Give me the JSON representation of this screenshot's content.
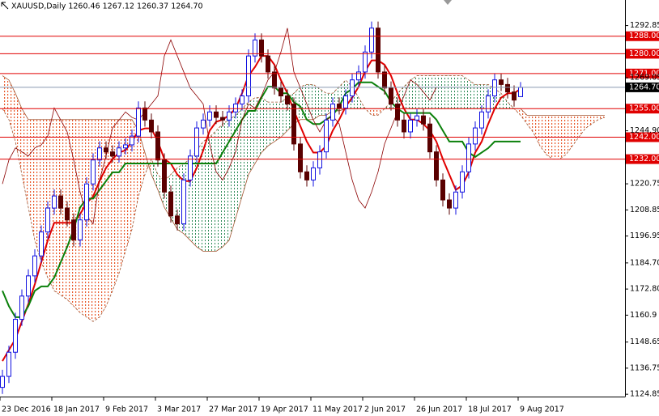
{
  "chart_data": {
    "type": "candlestick",
    "title": "XAUUSD,Daily  1260.46 1267.12 1260.37 1264.70",
    "categories": [
      "23 Dec 2016",
      null,
      null,
      null,
      null,
      null,
      null,
      null,
      "18 Jan 2017",
      null,
      null,
      null,
      null,
      null,
      null,
      null,
      "9 Feb 2017",
      null,
      null,
      null,
      null,
      null,
      null,
      null,
      "3 Mar 2017",
      null,
      null,
      null,
      null,
      null,
      null,
      null,
      "27 Mar 2017",
      null,
      null,
      null,
      null,
      null,
      null,
      null,
      "19 Apr 2017",
      null,
      null,
      null,
      null,
      null,
      null,
      null,
      "11 May 2017",
      null,
      null,
      null,
      null,
      null,
      null,
      null,
      "2 Jun 2017",
      null,
      null,
      null,
      null,
      null,
      null,
      null,
      "26 Jun 2017",
      null,
      null,
      null,
      null,
      null,
      null,
      null,
      "18 Jul 2017",
      null,
      null,
      null,
      null,
      null,
      null,
      null,
      "9 Aug 2017",
      null,
      null,
      null,
      null,
      null,
      null,
      null,
      null,
      null,
      null,
      null,
      null,
      null
    ],
    "candles": {
      "up_color": "#1010e0",
      "down_color": "#5a0000",
      "open": [
        1128.0,
        1133.0,
        1144.0,
        1159.0,
        1169.6,
        1178.8,
        1187.9,
        1198.8,
        1209.7,
        1215.2,
        1209.7,
        1204.3,
        1195.2,
        1204.3,
        1220.7,
        1231.6,
        1237.1,
        1235.3,
        1233.4,
        1237.1,
        1238.5,
        1242.5,
        1255.3,
        1249.8,
        1244.4,
        1231.6,
        1217.0,
        1206.1,
        1202.5,
        1222.5,
        1233.4,
        1246.2,
        1249.8,
        1253.5,
        1251.0,
        1249.8,
        1253.5,
        1257.1,
        1260.8,
        1279.0,
        1286.3,
        1279.0,
        1271.7,
        1264.4,
        1260.8,
        1257.1,
        1238.9,
        1226.2,
        1222.5,
        1228.0,
        1235.3,
        1249.8,
        1257.1,
        1255.3,
        1260.8,
        1268.1,
        1271.7,
        1280.8,
        1291.7,
        1271.7,
        1264.4,
        1257.1,
        1249.8,
        1244.4,
        1249.8,
        1251.7,
        1248.0,
        1235.3,
        1222.5,
        1213.4,
        1209.7,
        1217.0,
        1226.2,
        1238.9,
        1246.2,
        1253.5,
        1260.8,
        1268.1,
        1266.0,
        1262.6,
        1260.46,
        null,
        null,
        null,
        null,
        null,
        null,
        null,
        null,
        null,
        null,
        null,
        null,
        null
      ],
      "high": [
        1136.0,
        1147.0,
        1162.0,
        1172.6,
        1181.8,
        1190.9,
        1201.8,
        1212.7,
        1218.2,
        1218.2,
        1212.7,
        1207.3,
        1207.3,
        1223.7,
        1234.6,
        1240.1,
        1240.1,
        1238.3,
        1240.1,
        1241.5,
        1245.5,
        1258.3,
        1258.3,
        1252.8,
        1247.4,
        1234.6,
        1220.0,
        1209.1,
        1225.5,
        1236.4,
        1249.2,
        1252.8,
        1256.5,
        1256.5,
        1254.0,
        1256.5,
        1260.1,
        1263.8,
        1282.0,
        1289.3,
        1289.3,
        1282.0,
        1274.7,
        1267.4,
        1263.8,
        1260.1,
        1241.9,
        1229.2,
        1231.0,
        1238.3,
        1252.8,
        1260.1,
        1260.1,
        1263.8,
        1271.1,
        1274.7,
        1283.8,
        1294.7,
        1294.7,
        1274.7,
        1267.4,
        1260.1,
        1252.8,
        1252.8,
        1254.7,
        1254.7,
        1251.0,
        1238.3,
        1225.5,
        1216.4,
        1220.0,
        1229.2,
        1241.9,
        1249.2,
        1256.5,
        1263.8,
        1271.1,
        1271.1,
        1269.0,
        1265.6,
        1267.12,
        null,
        null,
        null,
        null,
        null,
        null,
        null,
        null,
        null,
        null,
        null,
        null,
        null
      ],
      "low": [
        1125.0,
        1130.0,
        1141.0,
        1156.0,
        1166.6,
        1175.8,
        1184.9,
        1195.8,
        1206.7,
        1206.7,
        1201.3,
        1192.2,
        1192.2,
        1201.3,
        1217.7,
        1228.6,
        1232.3,
        1230.4,
        1230.4,
        1234.1,
        1235.5,
        1239.5,
        1246.8,
        1241.4,
        1228.6,
        1214.0,
        1203.1,
        1199.5,
        1199.5,
        1219.5,
        1230.4,
        1243.2,
        1246.8,
        1248.0,
        1246.8,
        1246.8,
        1250.5,
        1254.1,
        1257.8,
        1276.0,
        1276.0,
        1268.7,
        1261.4,
        1257.8,
        1254.1,
        1235.9,
        1223.2,
        1219.5,
        1219.5,
        1225.0,
        1232.3,
        1246.8,
        1252.3,
        1252.3,
        1257.8,
        1265.1,
        1268.7,
        1277.8,
        1268.7,
        1261.4,
        1254.1,
        1246.8,
        1241.4,
        1241.4,
        1246.8,
        1245.0,
        1232.3,
        1219.5,
        1210.4,
        1206.7,
        1206.7,
        1214.0,
        1223.2,
        1235.9,
        1243.2,
        1250.5,
        1257.8,
        1263.0,
        1259.6,
        1255.9,
        1260.37,
        null,
        null,
        null,
        null,
        null,
        null,
        null,
        null,
        null,
        null,
        null,
        null,
        null
      ],
      "close": [
        1133.0,
        1144.0,
        1159.0,
        1169.6,
        1178.8,
        1187.9,
        1198.8,
        1209.7,
        1215.2,
        1209.7,
        1204.3,
        1195.2,
        1204.3,
        1220.7,
        1231.6,
        1237.1,
        1235.3,
        1233.4,
        1237.1,
        1238.5,
        1242.5,
        1255.3,
        1249.8,
        1244.4,
        1231.6,
        1217.0,
        1206.1,
        1202.5,
        1222.5,
        1233.4,
        1246.2,
        1249.8,
        1253.5,
        1251.0,
        1249.8,
        1253.5,
        1257.1,
        1260.8,
        1279.0,
        1286.3,
        1279.0,
        1271.7,
        1264.4,
        1260.8,
        1257.1,
        1238.9,
        1226.2,
        1222.5,
        1228.0,
        1235.3,
        1249.8,
        1257.1,
        1255.3,
        1260.8,
        1268.1,
        1271.7,
        1280.8,
        1291.7,
        1271.7,
        1264.4,
        1257.1,
        1249.8,
        1244.4,
        1249.8,
        1251.7,
        1248.0,
        1235.3,
        1222.5,
        1213.4,
        1209.7,
        1217.0,
        1226.2,
        1238.9,
        1246.2,
        1253.5,
        1260.8,
        1268.1,
        1266.0,
        1262.6,
        1258.9,
        1264.7,
        null,
        null,
        null,
        null,
        null,
        null,
        null,
        null,
        null,
        null,
        null,
        null,
        null
      ]
    },
    "cloud": {
      "bull_color": "#2e8b57",
      "bear_color": "#e8582a",
      "edge_color": "#a0522d",
      "span_a": [
        1255,
        1250,
        1240,
        1225,
        1210,
        1195,
        1185,
        1178,
        1172,
        1170,
        1168,
        1165,
        1162,
        1160,
        1158,
        1160,
        1165,
        1172,
        1180,
        1190,
        1200,
        1215,
        1225,
        1232,
        1225,
        1222,
        1225,
        1228,
        1230,
        1232,
        1236,
        1240,
        1242,
        1245,
        1248,
        1250,
        1252,
        1255,
        1258,
        1260,
        1260,
        1258,
        1258,
        1258,
        1260,
        1262,
        1265,
        1266,
        1266,
        1264,
        1262,
        1262,
        1265,
        1268,
        1265,
        1260,
        1255,
        1252,
        1252,
        1255,
        1258,
        1262,
        1265,
        1268,
        1270,
        1270,
        1270,
        1270,
        1270,
        1270,
        1270,
        1270,
        1268,
        1266,
        1266,
        1266,
        1264,
        1262,
        1258,
        1255,
        1252,
        1248,
        1244,
        1238,
        1234,
        1232,
        1232,
        1234,
        1238,
        1242,
        1246,
        1248,
        1250,
        1251
      ],
      "span_b": [
        1270,
        1268,
        1262,
        1255,
        1250,
        1250,
        1250,
        1250,
        1250,
        1250,
        1250,
        1250,
        1250,
        1250,
        1250,
        1250,
        1250,
        1250,
        1250,
        1250,
        1250,
        1245,
        1235,
        1225,
        1218,
        1210,
        1205,
        1200,
        1198,
        1195,
        1192,
        1190,
        1190,
        1190,
        1192,
        1195,
        1205,
        1215,
        1225,
        1230,
        1235,
        1238,
        1240,
        1242,
        1245,
        1248,
        1250,
        1250,
        1250,
        1252,
        1252,
        1254,
        1254,
        1255,
        1255,
        1255,
        1255,
        1255,
        1255,
        1255,
        1255,
        1255,
        1255,
        1255,
        1255,
        1255,
        1255,
        1255,
        1255,
        1255,
        1255,
        1255,
        1255,
        1255,
        1255,
        1255,
        1255,
        1255,
        1255,
        1255,
        1255,
        1252,
        1252,
        1252,
        1252,
        1252,
        1252,
        1252,
        1252,
        1252,
        1252,
        1252,
        1252,
        1252
      ]
    },
    "lines": [
      {
        "color": "#e00000",
        "width": 2,
        "values": [
          1140,
          1145,
          1150,
          1158,
          1166,
          1175,
          1185,
          1195,
          1203,
          1203,
          1203,
          1203,
          1207,
          1212,
          1215,
          1222,
          1228,
          1232,
          1235,
          1236,
          1240,
          1245,
          1246,
          1246,
          1240,
          1232,
          1230,
          1225,
          1222,
          1222,
          1228,
          1236,
          1245,
          1249,
          1250,
          1252,
          1255,
          1262,
          1270,
          1274,
          1279,
          1279,
          1275,
          1268,
          1262,
          1254,
          1247,
          1240,
          1235,
          1235,
          1238,
          1245,
          1250,
          1256,
          1260,
          1265,
          1272,
          1277,
          1277,
          1275,
          1270,
          1262,
          1255,
          1250,
          1250,
          1248,
          1245,
          1240,
          1232,
          1225,
          1218,
          1220,
          1226,
          1235,
          1240,
          1248,
          1255,
          1260,
          1262,
          1262,
          1264,
          null,
          null,
          null,
          null,
          null,
          null,
          null,
          null,
          null,
          null,
          null,
          null,
          null
        ]
      },
      {
        "color": "#0a800a",
        "width": 2,
        "values": [
          1172,
          1165,
          1160,
          1160,
          1165,
          1172,
          1174,
          1174,
          1178,
          1185,
          1192,
          1200,
          1210,
          1214,
          1214,
          1218,
          1222,
          1226,
          1226,
          1230,
          1230,
          1230,
          1230,
          1230,
          1230,
          1230,
          1230,
          1230,
          1230,
          1230,
          1230,
          1230,
          1230,
          1230,
          1235,
          1240,
          1245,
          1250,
          1254,
          1254,
          1260,
          1265,
          1265,
          1262,
          1262,
          1258,
          1256,
          1250,
          1248,
          1248,
          1250,
          1252,
          1256,
          1262,
          1264,
          1267,
          1267,
          1267,
          1265,
          1263,
          1258,
          1255,
          1253,
          1253,
          1253,
          1253,
          1253,
          1250,
          1245,
          1240,
          1240,
          1240,
          1235,
          1233,
          1235,
          1237,
          1240,
          1240,
          1240,
          1240,
          1240,
          null,
          null,
          null,
          null,
          null,
          null,
          null,
          null,
          null,
          null,
          null,
          null,
          null
        ]
      },
      {
        "color": "#8b0000",
        "width": 0.8,
        "values": [
          1220.7,
          1231.6,
          1237.1,
          1235.3,
          1233.4,
          1237.1,
          1238.5,
          1242.5,
          1255.3,
          1249.8,
          1244.4,
          1231.6,
          1217.0,
          1206.1,
          1202.5,
          1222.5,
          1233.4,
          1246.2,
          1249.8,
          1253.5,
          1251.0,
          1249.8,
          1253.5,
          1257.1,
          1260.8,
          1279.0,
          1286.3,
          1279.0,
          1271.7,
          1264.4,
          1260.8,
          1257.1,
          1238.9,
          1226.2,
          1222.5,
          1228.0,
          1235.3,
          1249.8,
          1257.1,
          1255.3,
          1260.8,
          1268.1,
          1271.7,
          1280.8,
          1291.7,
          1271.7,
          1264.4,
          1257.1,
          1249.8,
          1244.4,
          1249.8,
          1251.7,
          1248.0,
          1235.3,
          1222.5,
          1213.4,
          1209.7,
          1217.0,
          1226.2,
          1238.9,
          1246.2,
          1253.5,
          1260.8,
          1268.1,
          1266.0,
          1262.6,
          1258.9,
          1264.7,
          null,
          null,
          null,
          null,
          null,
          null,
          null,
          null,
          null,
          null,
          null,
          null,
          null,
          null,
          null,
          null,
          null,
          null,
          null,
          null,
          null,
          null,
          null,
          null,
          null,
          null
        ]
      }
    ],
    "levels": [
      {
        "value": 1288,
        "label": "1288.00",
        "color": "#e00000"
      },
      {
        "value": 1280,
        "label": "1280.00",
        "color": "#e00000"
      },
      {
        "value": 1271,
        "label": "1271.00",
        "color": "#e00000"
      },
      {
        "value": 1255,
        "label": "1255.00",
        "color": "#e00000"
      },
      {
        "value": 1242,
        "label": "1242.00",
        "color": "#e00000"
      },
      {
        "value": 1232,
        "label": "1232.00",
        "color": "#e00000"
      }
    ],
    "price_line": {
      "value": 1264.7,
      "label": "1264.70",
      "color": "#000000",
      "line_color": "#8a9ab0"
    },
    "ylim": [
      1123.8,
      1304.5
    ],
    "yticks": [
      1292.85,
      1269.05,
      {
        "value": 1244.9,
        "label": "1244.90"
      },
      1220.75,
      1208.85,
      1196.95,
      {
        "value": 1184.7,
        "label": "1184.70"
      },
      {
        "value": 1172.8,
        "label": "1172.80"
      },
      1160.9,
      1148.65,
      1136.75,
      1124.85
    ]
  }
}
